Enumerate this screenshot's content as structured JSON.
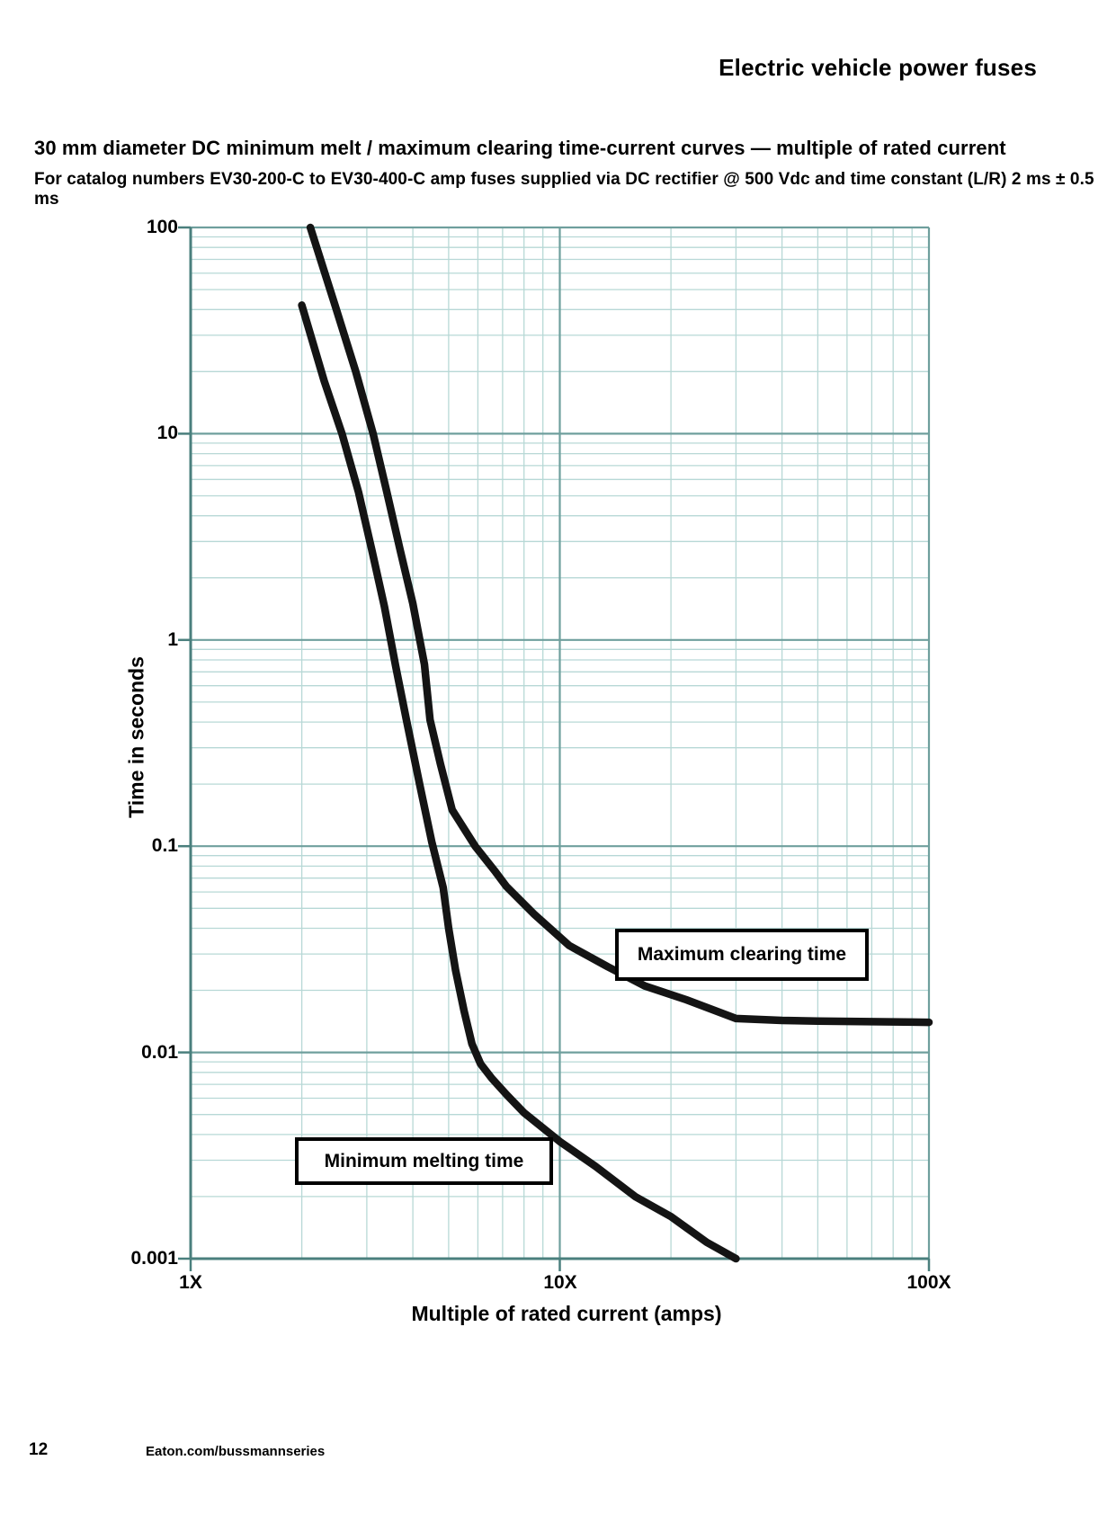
{
  "page": {
    "header": "Electric vehicle power fuses",
    "title": "30 mm diameter DC minimum melt / maximum clearing time-current curves — multiple of rated current",
    "subtitle": "For catalog numbers EV30-200-C to EV30-400-C amp fuses supplied via DC rectifier @ 500 Vdc and time constant (L/R) 2 ms ± 0.5 ms",
    "footer": {
      "page_number": "12",
      "website": "Eaton.com/bussmannseries"
    }
  },
  "chart_data": {
    "type": "line",
    "title": "30 mm diameter DC minimum melt / maximum clearing time-current curves — multiple of rated current",
    "xlabel": "Multiple of rated current (amps)",
    "ylabel": "Time in seconds",
    "x_scale": "log",
    "y_scale": "log",
    "xlim": [
      1,
      100
    ],
    "ylim": [
      0.001,
      100
    ],
    "x_tick_labels": [
      "1X",
      "10X",
      "100X"
    ],
    "x_tick_values": [
      1,
      10,
      100
    ],
    "y_tick_labels": [
      "100",
      "10",
      "1",
      "0.1",
      "0.01",
      "0.001"
    ],
    "y_tick_values": [
      100,
      10,
      1,
      0.1,
      0.01,
      0.001
    ],
    "grid": true,
    "legend_position": "boxed annotations on plot",
    "series": [
      {
        "name": "Minimum melting time",
        "units": [
          "multiple of rated current",
          "seconds"
        ],
        "points": [
          [
            2.0,
            42
          ],
          [
            2.3,
            18
          ],
          [
            2.57,
            10
          ],
          [
            2.85,
            5.2
          ],
          [
            3.1,
            2.7
          ],
          [
            3.35,
            1.45
          ],
          [
            3.59,
            0.75
          ],
          [
            3.84,
            0.41
          ],
          [
            4.17,
            0.2
          ],
          [
            4.5,
            0.105
          ],
          [
            4.83,
            0.063
          ],
          [
            5.0,
            0.04
          ],
          [
            5.22,
            0.025
          ],
          [
            5.5,
            0.016
          ],
          [
            5.78,
            0.011
          ],
          [
            6.1,
            0.0088
          ],
          [
            6.54,
            0.0075
          ],
          [
            7.2,
            0.0062
          ],
          [
            8.0,
            0.0051
          ],
          [
            10,
            0.0037
          ],
          [
            12.5,
            0.0028
          ],
          [
            16,
            0.002
          ],
          [
            20,
            0.0016
          ],
          [
            25,
            0.0012
          ],
          [
            30,
            0.001
          ]
        ]
      },
      {
        "name": "Maximum clearing time",
        "units": [
          "multiple of rated current",
          "seconds"
        ],
        "points": [
          [
            2.11,
            100
          ],
          [
            2.46,
            42
          ],
          [
            2.8,
            20
          ],
          [
            3.12,
            10
          ],
          [
            3.4,
            5.2
          ],
          [
            3.7,
            2.7
          ],
          [
            4.0,
            1.5
          ],
          [
            4.3,
            0.76
          ],
          [
            4.45,
            0.41
          ],
          [
            4.75,
            0.25
          ],
          [
            5.11,
            0.15
          ],
          [
            5.9,
            0.1
          ],
          [
            6.7,
            0.075
          ],
          [
            7.16,
            0.064
          ],
          [
            8.5,
            0.047
          ],
          [
            10.6,
            0.033
          ],
          [
            13.5,
            0.026
          ],
          [
            17,
            0.021
          ],
          [
            22,
            0.018
          ],
          [
            30,
            0.0146
          ],
          [
            40,
            0.0143
          ],
          [
            50,
            0.0142
          ],
          [
            70,
            0.0141
          ],
          [
            100,
            0.014
          ]
        ]
      }
    ],
    "colors": {
      "curve": "#141414",
      "grid_minor": "#b7d8d6",
      "grid_major": "#6f9f9d",
      "axis": "#4a7f7d"
    }
  }
}
